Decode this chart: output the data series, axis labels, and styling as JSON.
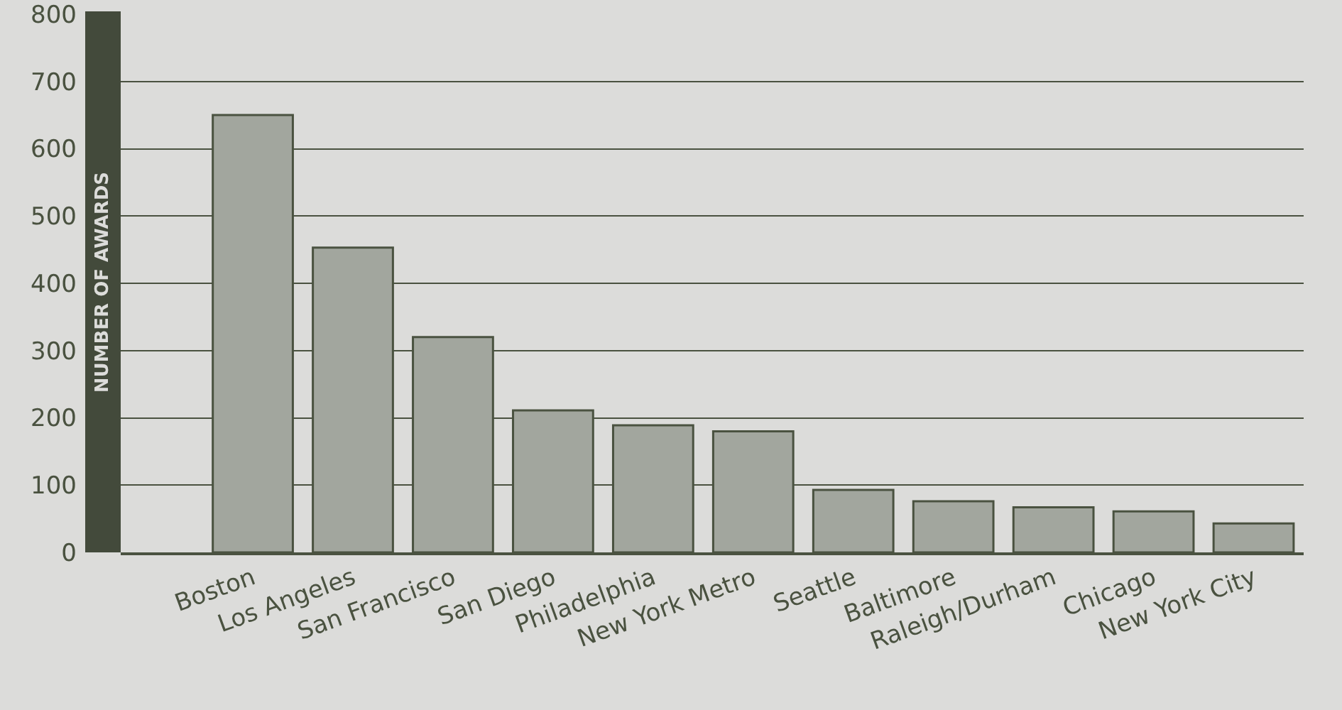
{
  "chart_data": {
    "type": "bar",
    "ylabel": "NUMBER OF AWARDS",
    "categories": [
      "Boston",
      "Los Angeles",
      "San Francisco",
      "San Diego",
      "Philadelphia",
      "New York Metro",
      "Seattle",
      "Baltimore",
      "Raleigh/Durham",
      "Chicago",
      "New York City"
    ],
    "values": [
      650,
      453,
      320,
      211,
      189,
      180,
      93,
      76,
      67,
      61,
      43
    ],
    "color": "#a2a69e",
    "ylim": [
      0,
      800
    ],
    "yticks": [
      0,
      100,
      200,
      300,
      400,
      500,
      600,
      700,
      800
    ],
    "grid": "y"
  }
}
